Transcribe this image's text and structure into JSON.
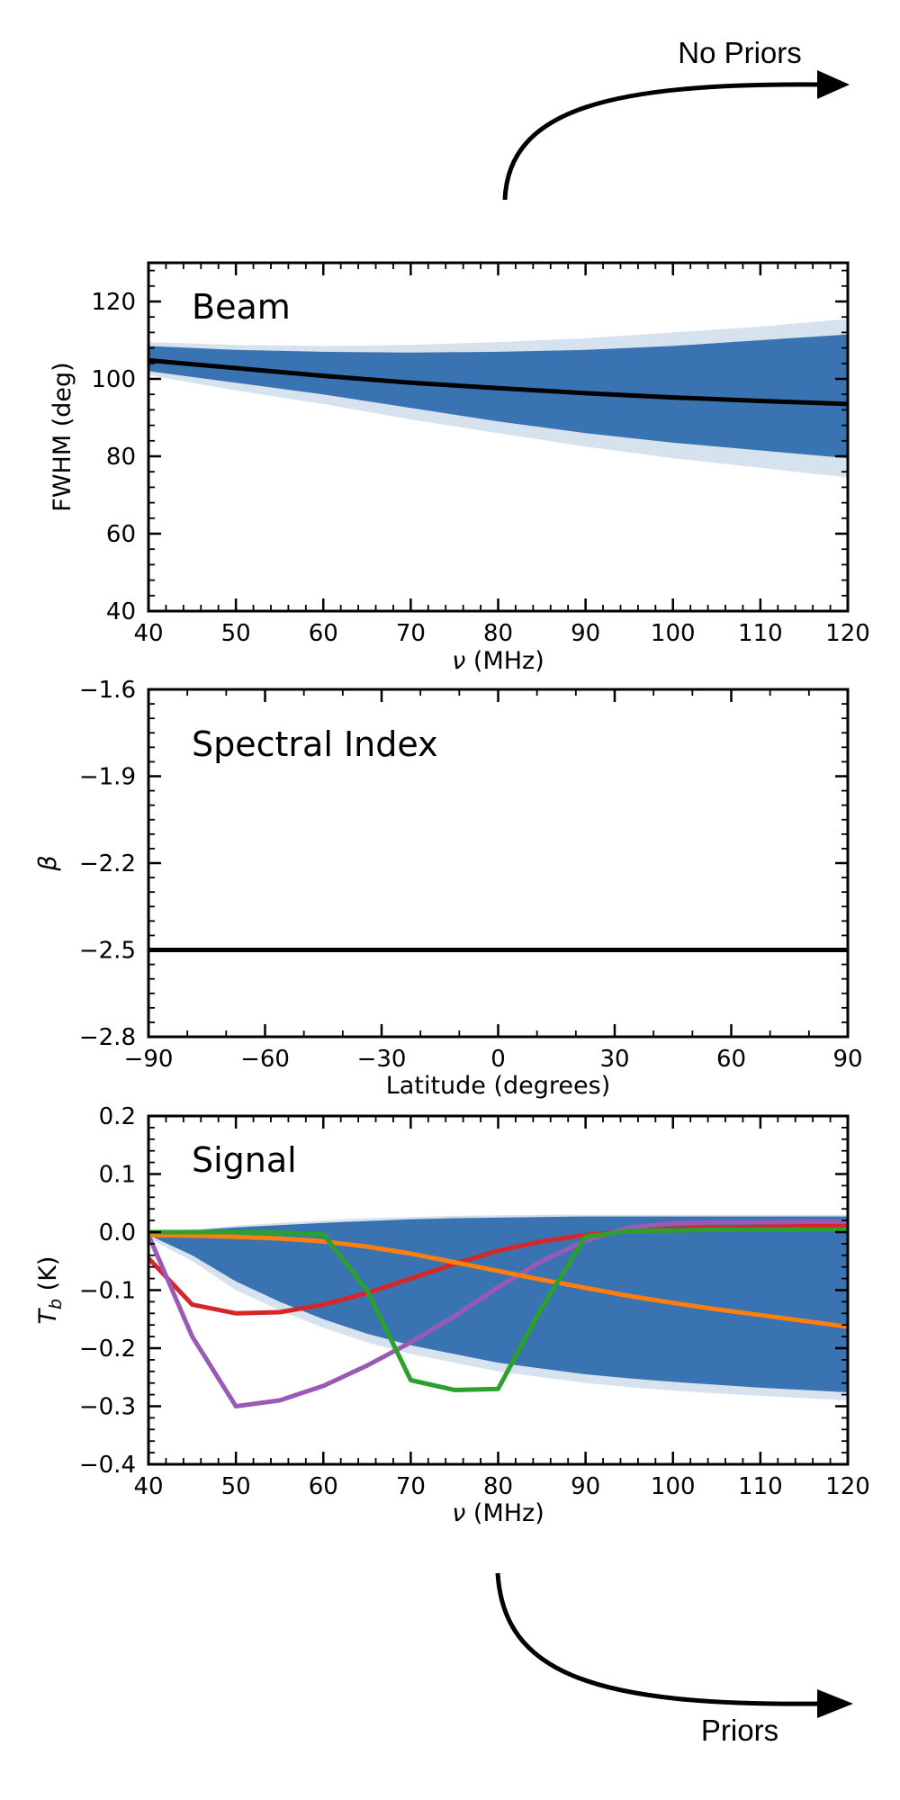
{
  "arrows": {
    "top_label": "No Priors",
    "bottom_label": "Priors"
  },
  "chart_data": [
    {
      "type": "line",
      "title": "Beam",
      "xlabel": "ν (MHz)",
      "ylabel": "FWHM (deg)",
      "xlim": [
        40,
        120
      ],
      "ylim": [
        40,
        130
      ],
      "xticks": [
        40,
        50,
        60,
        70,
        80,
        90,
        100,
        110,
        120
      ],
      "yticks": [
        40,
        60,
        80,
        100,
        120
      ],
      "x": [
        40,
        50,
        60,
        70,
        80,
        90,
        100,
        110,
        120
      ],
      "series": [
        {
          "values": [
            104.8,
            102.8,
            100.8,
            99.0,
            97.6,
            96.3,
            95.2,
            94.3,
            93.5
          ],
          "color": "#000000"
        }
      ],
      "band": {
        "color": "#1f5fa6",
        "lower": [
          102,
          99,
          96,
          92.5,
          89,
          86,
          83.5,
          81.5,
          79.5
        ],
        "upper": [
          108.5,
          107.5,
          107,
          106.8,
          107,
          107.5,
          108.5,
          110,
          111.5
        ],
        "outer_lower": [
          101,
          97,
          93.5,
          89.5,
          86,
          82.5,
          79.5,
          77,
          74.5
        ],
        "outer_upper": [
          109.5,
          108.8,
          108.5,
          108.8,
          109.5,
          110.5,
          112,
          113.5,
          115.5
        ]
      },
      "grid": false
    },
    {
      "type": "line",
      "title": "Spectral Index",
      "xlabel": "Latitude (degrees)",
      "ylabel": "β",
      "xlim": [
        -90,
        90
      ],
      "ylim": [
        -2.8,
        -1.6
      ],
      "xticks": [
        -90,
        -60,
        -30,
        0,
        30,
        60,
        90
      ],
      "yticks": [
        -2.8,
        -2.5,
        -2.2,
        -1.9,
        -1.6
      ],
      "x": [
        -90,
        90
      ],
      "series": [
        {
          "values": [
            -2.5,
            -2.5
          ],
          "color": "#000000"
        }
      ],
      "grid": false
    },
    {
      "type": "line",
      "title": "Signal",
      "xlabel": "ν (MHz)",
      "ylabel": "T_b (K)",
      "xlim": [
        40,
        120
      ],
      "ylim": [
        -0.4,
        0.2
      ],
      "xticks": [
        40,
        50,
        60,
        70,
        80,
        90,
        100,
        110,
        120
      ],
      "yticks": [
        -0.4,
        -0.3,
        -0.2,
        -0.1,
        0.0,
        0.1,
        0.2
      ],
      "x": [
        40,
        45,
        50,
        55,
        60,
        65,
        70,
        75,
        80,
        85,
        90,
        95,
        100,
        105,
        110,
        115,
        120
      ],
      "series": [
        {
          "color": "#d62728",
          "values": [
            -0.045,
            -0.125,
            -0.14,
            -0.138,
            -0.125,
            -0.105,
            -0.08,
            -0.055,
            -0.032,
            -0.016,
            -0.005,
            0.002,
            0.006,
            0.008,
            0.009,
            0.01,
            0.01
          ]
        },
        {
          "color": "#9b59b6",
          "values": [
            -0.005,
            -0.18,
            -0.3,
            -0.29,
            -0.265,
            -0.23,
            -0.19,
            -0.145,
            -0.095,
            -0.05,
            -0.015,
            0.008,
            0.015,
            0.017,
            0.017,
            0.018,
            0.018
          ]
        },
        {
          "color": "#ff7f0e",
          "values": [
            -0.005,
            -0.006,
            -0.008,
            -0.011,
            -0.016,
            -0.025,
            -0.037,
            -0.052,
            -0.067,
            -0.082,
            -0.096,
            -0.11,
            -0.122,
            -0.133,
            -0.143,
            -0.153,
            -0.163
          ]
        },
        {
          "color": "#2ca02c",
          "values": [
            0.0,
            0.0,
            0.0,
            -0.001,
            -0.004,
            -0.1,
            -0.255,
            -0.272,
            -0.27,
            -0.13,
            -0.008,
            0.002,
            0.003,
            0.004,
            0.004,
            0.004,
            0.004
          ]
        }
      ],
      "band": {
        "color": "#1f5fa6",
        "lower": [
          -0.005,
          -0.04,
          -0.085,
          -0.12,
          -0.15,
          -0.175,
          -0.195,
          -0.21,
          -0.225,
          -0.235,
          -0.245,
          -0.252,
          -0.258,
          -0.263,
          -0.268,
          -0.272,
          -0.276
        ],
        "upper": [
          0.0,
          0.003,
          0.008,
          0.012,
          0.016,
          0.019,
          0.022,
          0.024,
          0.025,
          0.026,
          0.027,
          0.027,
          0.027,
          0.027,
          0.027,
          0.027,
          0.027
        ],
        "outer_lower": [
          -0.01,
          -0.05,
          -0.1,
          -0.135,
          -0.165,
          -0.19,
          -0.21,
          -0.225,
          -0.24,
          -0.25,
          -0.26,
          -0.267,
          -0.273,
          -0.278,
          -0.282,
          -0.286,
          -0.29
        ],
        "outer_upper": [
          0.0,
          0.005,
          0.011,
          0.016,
          0.02,
          0.024,
          0.026,
          0.028,
          0.029,
          0.03,
          0.03,
          0.03,
          0.03,
          0.03,
          0.03,
          0.03,
          0.03
        ]
      },
      "grid": false
    }
  ]
}
